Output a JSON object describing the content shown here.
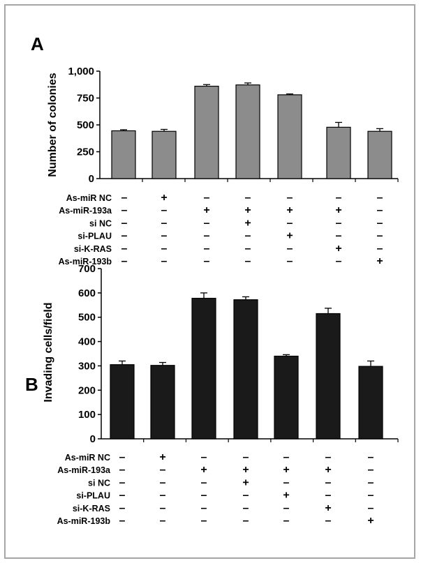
{
  "colors": {
    "frame": "#a6a6a6",
    "bars_a": "#8c8c8c",
    "bars_b": "#1a1a1a",
    "axis": "#000000"
  },
  "chart_data": [
    {
      "type": "bar",
      "panel_label": "A",
      "ylabel": "Number of colonies",
      "ylim": [
        0,
        1000
      ],
      "yticks": [
        "0",
        "250",
        "500",
        "750",
        "1,000"
      ],
      "ytick_values": [
        0,
        250,
        500,
        750,
        1000
      ],
      "values": [
        445,
        440,
        860,
        872,
        780,
        478,
        440
      ],
      "errors": [
        10,
        18,
        15,
        18,
        8,
        45,
        25
      ],
      "bar_color": "#8c8c8c",
      "conditions": {
        "labels": [
          "As-miR NC",
          "As-miR-193a",
          "si NC",
          "si-PLAU",
          "si-K-RAS",
          "As-miR-193b"
        ],
        "rows": [
          [
            "–",
            "+",
            "–",
            "–",
            "–",
            "–",
            "–"
          ],
          [
            "–",
            "–",
            "+",
            "+",
            "+",
            "+",
            "–"
          ],
          [
            "–",
            "–",
            "–",
            "+",
            "–",
            "–",
            "–"
          ],
          [
            "–",
            "–",
            "–",
            "–",
            "+",
            "–",
            "–"
          ],
          [
            "–",
            "–",
            "–",
            "–",
            "–",
            "+",
            "–"
          ],
          [
            "–",
            "–",
            "–",
            "–",
            "–",
            "–",
            "+"
          ]
        ]
      }
    },
    {
      "type": "bar",
      "panel_label": "B",
      "ylabel": "Invading cells/field",
      "ylim": [
        0,
        700
      ],
      "yticks": [
        "0",
        "100",
        "200",
        "300",
        "400",
        "500",
        "600",
        "700"
      ],
      "ytick_values": [
        0,
        100,
        200,
        300,
        400,
        500,
        600,
        700
      ],
      "values": [
        305,
        302,
        578,
        572,
        340,
        515,
        298
      ],
      "errors": [
        15,
        12,
        22,
        12,
        6,
        22,
        22
      ],
      "bar_color": "#1a1a1a",
      "conditions": {
        "labels": [
          "As-miR NC",
          "As-miR-193a",
          "si NC",
          "si-PLAU",
          "si-K-RAS",
          "As-miR-193b"
        ],
        "rows": [
          [
            "–",
            "+",
            "–",
            "–",
            "–",
            "–",
            "–"
          ],
          [
            "–",
            "–",
            "+",
            "+",
            "+",
            "+",
            "–"
          ],
          [
            "–",
            "–",
            "–",
            "+",
            "–",
            "–",
            "–"
          ],
          [
            "–",
            "–",
            "–",
            "–",
            "+",
            "–",
            "–"
          ],
          [
            "–",
            "–",
            "–",
            "–",
            "–",
            "+",
            "–"
          ],
          [
            "–",
            "–",
            "–",
            "–",
            "–",
            "–",
            "+"
          ]
        ]
      }
    }
  ]
}
